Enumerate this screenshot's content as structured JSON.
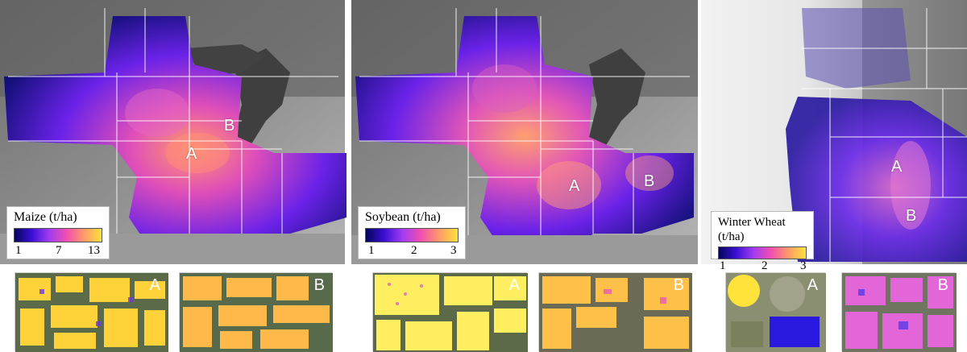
{
  "panels": [
    {
      "id": "maize",
      "legend_title": "Maize (t/ha)",
      "legend_ticks": [
        "1",
        "7",
        "13"
      ],
      "map_labels": [
        "A",
        "B"
      ],
      "insets": [
        "A",
        "B"
      ]
    },
    {
      "id": "soybean",
      "legend_title": "Soybean (t/ha)",
      "legend_ticks": [
        "1",
        "2",
        "3"
      ],
      "map_labels": [
        "A",
        "B"
      ],
      "insets": [
        "A",
        "B"
      ]
    },
    {
      "id": "winter-wheat",
      "legend_title": "Winter Wheat (t/ha)",
      "legend_ticks": [
        "1",
        "2",
        "3"
      ],
      "map_labels": [
        "A",
        "B"
      ],
      "insets": [
        "A",
        "B"
      ]
    }
  ],
  "colors": {
    "ramp": [
      "#05055a",
      "#3a0fd6",
      "#a23cf0",
      "#f04fb0",
      "#ff9a6a",
      "#ffe23a"
    ],
    "basemap_dark": "#4a4a4a",
    "basemap_light": "#d9d9d9",
    "boundary": "#ffffff"
  }
}
